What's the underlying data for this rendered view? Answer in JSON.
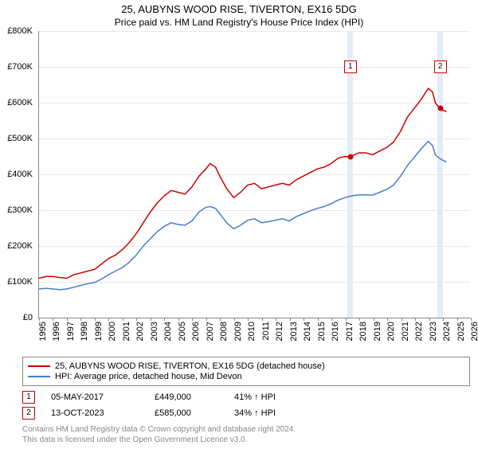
{
  "title": "25, AUBYNS WOOD RISE, TIVERTON, EX16 5DG",
  "subtitle": "Price paid vs. HM Land Registry's House Price Index (HPI)",
  "chart": {
    "type": "line",
    "background_color": "#ffffff",
    "grid_color": "#e8e8e8",
    "highlight_band_color": "#e4ecf7",
    "axis_color": "#888888",
    "ylim": [
      0,
      800000
    ],
    "ytick_step": 100000,
    "yticks": [
      "£0",
      "£100K",
      "£200K",
      "£300K",
      "£400K",
      "£500K",
      "£600K",
      "£700K",
      "£800K"
    ],
    "xlim": [
      1995,
      2026
    ],
    "xticks": [
      1995,
      1996,
      1997,
      1998,
      1999,
      2000,
      2001,
      2002,
      2003,
      2004,
      2005,
      2006,
      2007,
      2008,
      2009,
      2010,
      2011,
      2012,
      2013,
      2014,
      2015,
      2016,
      2017,
      2018,
      2019,
      2020,
      2021,
      2022,
      2023,
      2024,
      2025,
      2026
    ],
    "label_fontsize": 11,
    "series": [
      {
        "name": "25, AUBYNS WOOD RISE, TIVERTON, EX16 5DG (detached house)",
        "color": "#cc0000",
        "line_width": 1.5,
        "points": [
          [
            1995,
            110000
          ],
          [
            1995.5,
            115000
          ],
          [
            1996,
            115000
          ],
          [
            1996.5,
            112000
          ],
          [
            1997,
            110000
          ],
          [
            1997.5,
            120000
          ],
          [
            1998,
            125000
          ],
          [
            1998.5,
            130000
          ],
          [
            1999,
            135000
          ],
          [
            1999.5,
            150000
          ],
          [
            2000,
            165000
          ],
          [
            2000.5,
            175000
          ],
          [
            2001,
            190000
          ],
          [
            2001.5,
            210000
          ],
          [
            2002,
            235000
          ],
          [
            2002.5,
            265000
          ],
          [
            2003,
            295000
          ],
          [
            2003.5,
            320000
          ],
          [
            2004,
            340000
          ],
          [
            2004.5,
            355000
          ],
          [
            2005,
            350000
          ],
          [
            2005.5,
            345000
          ],
          [
            2006,
            365000
          ],
          [
            2006.5,
            395000
          ],
          [
            2007,
            415000
          ],
          [
            2007.3,
            430000
          ],
          [
            2007.7,
            420000
          ],
          [
            2008,
            395000
          ],
          [
            2008.5,
            360000
          ],
          [
            2009,
            335000
          ],
          [
            2009.5,
            350000
          ],
          [
            2010,
            370000
          ],
          [
            2010.5,
            375000
          ],
          [
            2011,
            360000
          ],
          [
            2011.5,
            365000
          ],
          [
            2012,
            370000
          ],
          [
            2012.5,
            375000
          ],
          [
            2013,
            370000
          ],
          [
            2013.5,
            385000
          ],
          [
            2014,
            395000
          ],
          [
            2014.5,
            405000
          ],
          [
            2015,
            415000
          ],
          [
            2015.5,
            420000
          ],
          [
            2016,
            430000
          ],
          [
            2016.5,
            445000
          ],
          [
            2017,
            450000
          ],
          [
            2017.3,
            449000
          ],
          [
            2017.7,
            455000
          ],
          [
            2018,
            460000
          ],
          [
            2018.5,
            460000
          ],
          [
            2019,
            455000
          ],
          [
            2019.5,
            465000
          ],
          [
            2020,
            475000
          ],
          [
            2020.5,
            490000
          ],
          [
            2021,
            520000
          ],
          [
            2021.5,
            560000
          ],
          [
            2022,
            585000
          ],
          [
            2022.5,
            610000
          ],
          [
            2023,
            640000
          ],
          [
            2023.3,
            630000
          ],
          [
            2023.5,
            600000
          ],
          [
            2023.8,
            585000
          ],
          [
            2024,
            580000
          ],
          [
            2024.3,
            575000
          ]
        ]
      },
      {
        "name": "HPI: Average price, detached house, Mid Devon",
        "color": "#4a7dc9",
        "line_width": 1.5,
        "points": [
          [
            1995,
            80000
          ],
          [
            1995.5,
            82000
          ],
          [
            1996,
            80000
          ],
          [
            1996.5,
            78000
          ],
          [
            1997,
            80000
          ],
          [
            1997.5,
            85000
          ],
          [
            1998,
            90000
          ],
          [
            1998.5,
            95000
          ],
          [
            1999,
            98000
          ],
          [
            1999.5,
            108000
          ],
          [
            2000,
            120000
          ],
          [
            2000.5,
            130000
          ],
          [
            2001,
            140000
          ],
          [
            2001.5,
            155000
          ],
          [
            2002,
            175000
          ],
          [
            2002.5,
            200000
          ],
          [
            2003,
            220000
          ],
          [
            2003.5,
            240000
          ],
          [
            2004,
            255000
          ],
          [
            2004.5,
            265000
          ],
          [
            2005,
            260000
          ],
          [
            2005.5,
            258000
          ],
          [
            2006,
            270000
          ],
          [
            2006.5,
            295000
          ],
          [
            2007,
            308000
          ],
          [
            2007.3,
            310000
          ],
          [
            2007.7,
            305000
          ],
          [
            2008,
            290000
          ],
          [
            2008.5,
            265000
          ],
          [
            2009,
            248000
          ],
          [
            2009.5,
            258000
          ],
          [
            2010,
            272000
          ],
          [
            2010.5,
            276000
          ],
          [
            2011,
            265000
          ],
          [
            2011.5,
            268000
          ],
          [
            2012,
            272000
          ],
          [
            2012.5,
            276000
          ],
          [
            2013,
            270000
          ],
          [
            2013.5,
            282000
          ],
          [
            2014,
            290000
          ],
          [
            2014.5,
            298000
          ],
          [
            2015,
            305000
          ],
          [
            2015.5,
            310000
          ],
          [
            2016,
            318000
          ],
          [
            2016.5,
            328000
          ],
          [
            2017,
            335000
          ],
          [
            2017.5,
            340000
          ],
          [
            2018,
            343000
          ],
          [
            2018.5,
            343000
          ],
          [
            2019,
            342000
          ],
          [
            2019.5,
            350000
          ],
          [
            2020,
            358000
          ],
          [
            2020.5,
            370000
          ],
          [
            2021,
            395000
          ],
          [
            2021.5,
            425000
          ],
          [
            2022,
            448000
          ],
          [
            2022.5,
            472000
          ],
          [
            2023,
            492000
          ],
          [
            2023.3,
            480000
          ],
          [
            2023.5,
            455000
          ],
          [
            2023.8,
            445000
          ],
          [
            2024,
            440000
          ],
          [
            2024.3,
            435000
          ]
        ]
      }
    ],
    "highlight_bands": [
      {
        "from": 2017.15,
        "to": 2017.55
      },
      {
        "from": 2023.6,
        "to": 2024.0
      }
    ],
    "markers": [
      {
        "label": "1",
        "x": 2017.35,
        "y": 449000,
        "box_y": 700000,
        "dot_color": "#cc0000"
      },
      {
        "label": "2",
        "x": 2023.8,
        "y": 585000,
        "box_y": 700000,
        "dot_color": "#cc0000"
      }
    ]
  },
  "legend": {
    "items": [
      {
        "color": "#cc0000",
        "label": "25, AUBYNS WOOD RISE, TIVERTON, EX16 5DG (detached house)"
      },
      {
        "color": "#4a7dc9",
        "label": "HPI: Average price, detached house, Mid Devon"
      }
    ]
  },
  "transactions": [
    {
      "marker": "1",
      "date": "05-MAY-2017",
      "price": "£449,000",
      "hpi": "41% ↑ HPI"
    },
    {
      "marker": "2",
      "date": "13-OCT-2023",
      "price": "£585,000",
      "hpi": "34% ↑ HPI"
    }
  ],
  "footer_line1": "Contains HM Land Registry data © Crown copyright and database right 2024.",
  "footer_line2": "This data is licensed under the Open Government Licence v3.0."
}
